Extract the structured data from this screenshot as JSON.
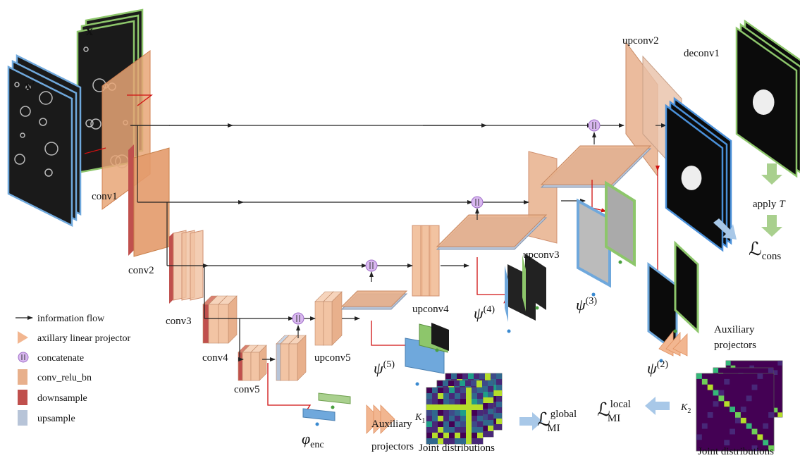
{
  "inputs": {
    "x": "x",
    "x_prime": "x′"
  },
  "layers": {
    "conv1": "conv1",
    "conv2": "conv2",
    "conv3": "conv3",
    "conv4": "conv4",
    "conv5": "conv5",
    "upconv5": "upconv5",
    "upconv4": "upconv4",
    "upconv3": "upconv3",
    "upconv2": "upconv2",
    "deconv1": "deconv1"
  },
  "projections": [
    {
      "symbol": "ψ",
      "sup": "(5)"
    },
    {
      "symbol": "ψ",
      "sup": "(4)"
    },
    {
      "symbol": "ψ",
      "sup": "(3)"
    },
    {
      "symbol": "ψ",
      "sup": "(2)"
    }
  ],
  "encoder_projection": {
    "symbol": "φ",
    "sub": "enc"
  },
  "auxiliary_left": [
    "Auxiliary",
    "projectors"
  ],
  "auxiliary_right": [
    "Auxiliary",
    "projectors"
  ],
  "joint_left": {
    "k": "K",
    "k_sub": "1",
    "caption": "Joint distributions"
  },
  "joint_right": {
    "k": "K",
    "k_sub": "2",
    "caption": "Joint distributions"
  },
  "losses": {
    "global": {
      "symbol": "ℒ",
      "sub": "MI",
      "sup": "global"
    },
    "local": {
      "symbol": "ℒ",
      "sub": "MI",
      "sup": "local"
    },
    "cons": {
      "symbol": "ℒ",
      "sub": "cons"
    }
  },
  "apply_t": {
    "text": "apply",
    "var": "T"
  },
  "legend": [
    "information flow",
    "axillary linear projector",
    "concatenate",
    "conv_relu_bn",
    "downsample",
    "upsample"
  ]
}
